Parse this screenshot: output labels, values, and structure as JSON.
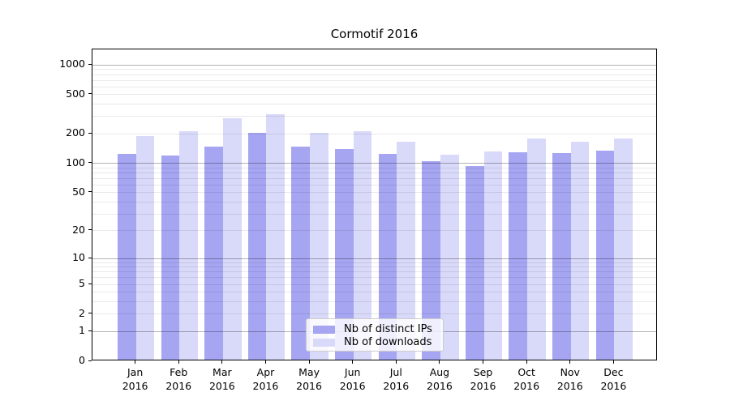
{
  "title": "Cormotif 2016",
  "chart_data": {
    "type": "bar",
    "title": "Cormotif 2016",
    "categories": [
      "Jan",
      "Feb",
      "Mar",
      "Apr",
      "May",
      "Jun",
      "Jul",
      "Aug",
      "Sep",
      "Oct",
      "Nov",
      "Dec"
    ],
    "year_label": "2016",
    "series": [
      {
        "name": "Nb of distinct IPs",
        "color": "#a5a5f2",
        "values": [
          120,
          116,
          144,
          196,
          144,
          135,
          120,
          101,
          90,
          124,
          122,
          130
        ]
      },
      {
        "name": "Nb of downloads",
        "color": "#d9d9f9",
        "values": [
          183,
          205,
          279,
          306,
          199,
          203,
          161,
          119,
          128,
          172,
          160,
          174
        ]
      }
    ],
    "yscale": "log1p",
    "ylim": [
      0,
      1440
    ],
    "yticks": [
      1000,
      500,
      200,
      100,
      50,
      20,
      10,
      5,
      2,
      1,
      0
    ],
    "grid": "horizontal, log minor + major decade lines drawn over bars",
    "legend_position": "inside lower-center"
  }
}
